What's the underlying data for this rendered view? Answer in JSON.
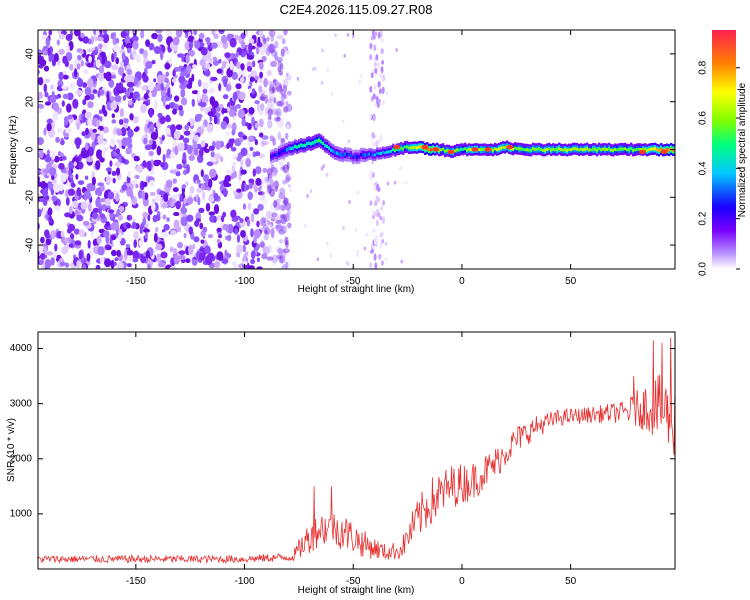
{
  "title": "C2E4.2026.115.09.27.R08",
  "chart_data": [
    {
      "type": "heatmap",
      "name": "spectrogram",
      "xlabel": "Height of straight line (km)",
      "ylabel": "Frequency (Hz)",
      "xlim": [
        -195,
        98
      ],
      "ylim": [
        -50,
        50
      ],
      "xticks": [
        -150,
        -100,
        -50,
        0,
        50
      ],
      "yticks": [
        -40,
        -20,
        0,
        20,
        40
      ],
      "colorbar": {
        "label": "Normalized spectral amplitude",
        "range": [
          0.0,
          0.95
        ],
        "ticks": [
          0.0,
          0.2,
          0.4,
          0.6,
          0.8
        ],
        "colors": [
          "#ffffff",
          "#b48cff",
          "#7a00ff",
          "#1a00ff",
          "#00c8ff",
          "#00ff80",
          "#80ff00",
          "#ffff00",
          "#ff8000",
          "#ff2030"
        ]
      },
      "noise_region_x": [
        -195,
        -83
      ],
      "noise_band_x": [
        -42,
        -36
      ],
      "signal": [
        {
          "x": -88,
          "f": -3,
          "a": 0.25
        },
        {
          "x": -83,
          "f": -1,
          "a": 0.35
        },
        {
          "x": -78,
          "f": 1,
          "a": 0.45
        },
        {
          "x": -72,
          "f": 2,
          "a": 0.5
        },
        {
          "x": -66,
          "f": 4,
          "a": 0.55
        },
        {
          "x": -60,
          "f": -1,
          "a": 0.4
        },
        {
          "x": -55,
          "f": -2,
          "a": 0.35
        },
        {
          "x": -50,
          "f": -3,
          "a": 0.3
        },
        {
          "x": -45,
          "f": -2,
          "a": 0.35
        },
        {
          "x": -40,
          "f": -2,
          "a": 0.4
        },
        {
          "x": -35,
          "f": -1,
          "a": 0.45
        },
        {
          "x": -30,
          "f": 0,
          "a": 0.55
        },
        {
          "x": -25,
          "f": 1,
          "a": 0.6
        },
        {
          "x": -20,
          "f": 1,
          "a": 0.75
        },
        {
          "x": -15,
          "f": 0,
          "a": 0.9
        },
        {
          "x": -10,
          "f": 0,
          "a": 0.6
        },
        {
          "x": -5,
          "f": -1,
          "a": 0.65
        },
        {
          "x": 0,
          "f": 0,
          "a": 0.55
        },
        {
          "x": 5,
          "f": 0,
          "a": 0.7
        },
        {
          "x": 10,
          "f": 0,
          "a": 0.6
        },
        {
          "x": 15,
          "f": 0,
          "a": 0.65
        },
        {
          "x": 20,
          "f": 1,
          "a": 0.7
        },
        {
          "x": 25,
          "f": 0,
          "a": 0.6
        },
        {
          "x": 30,
          "f": 0,
          "a": 0.62
        },
        {
          "x": 40,
          "f": 0,
          "a": 0.65
        },
        {
          "x": 50,
          "f": 0,
          "a": 0.65
        },
        {
          "x": 60,
          "f": 0,
          "a": 0.63
        },
        {
          "x": 70,
          "f": 0,
          "a": 0.62
        },
        {
          "x": 80,
          "f": 0,
          "a": 0.6
        },
        {
          "x": 88,
          "f": 0,
          "a": 0.75
        },
        {
          "x": 95,
          "f": 0,
          "a": 0.85
        }
      ],
      "hot_spots": [
        {
          "x": -30,
          "f": 1
        },
        {
          "x": -17,
          "f": 1
        },
        {
          "x": -12,
          "f": 0
        },
        {
          "x": -5,
          "f": -1
        },
        {
          "x": 6,
          "f": 0
        },
        {
          "x": 12,
          "f": 0
        },
        {
          "x": 22,
          "f": 1
        },
        {
          "x": 83,
          "f": -1
        },
        {
          "x": 93,
          "f": -1
        }
      ]
    },
    {
      "type": "line",
      "name": "snr",
      "xlabel": "Height of straight line (km)",
      "ylabel": "SNR (10 * v/v)",
      "xlim": [
        -195,
        98
      ],
      "ylim": [
        0,
        4300
      ],
      "xticks": [
        -150,
        -100,
        -50,
        0,
        50
      ],
      "yticks": [
        1000,
        2000,
        3000,
        4000
      ],
      "color": "#e83030",
      "envelope": [
        {
          "x": -195,
          "base": 180,
          "spread": 140
        },
        {
          "x": -100,
          "base": 180,
          "spread": 140
        },
        {
          "x": -78,
          "base": 220,
          "spread": 160
        },
        {
          "x": -72,
          "base": 500,
          "spread": 550
        },
        {
          "x": -65,
          "base": 750,
          "spread": 650
        },
        {
          "x": -55,
          "base": 700,
          "spread": 700
        },
        {
          "x": -45,
          "base": 450,
          "spread": 500
        },
        {
          "x": -35,
          "base": 300,
          "spread": 300
        },
        {
          "x": -28,
          "base": 350,
          "spread": 350
        },
        {
          "x": -22,
          "base": 800,
          "spread": 700
        },
        {
          "x": -15,
          "base": 1200,
          "spread": 900
        },
        {
          "x": -5,
          "base": 1500,
          "spread": 800
        },
        {
          "x": 5,
          "base": 1600,
          "spread": 700
        },
        {
          "x": 15,
          "base": 1900,
          "spread": 600
        },
        {
          "x": 25,
          "base": 2350,
          "spread": 500
        },
        {
          "x": 35,
          "base": 2600,
          "spread": 400
        },
        {
          "x": 45,
          "base": 2750,
          "spread": 300
        },
        {
          "x": 60,
          "base": 2800,
          "spread": 300
        },
        {
          "x": 75,
          "base": 2850,
          "spread": 400
        },
        {
          "x": 85,
          "base": 2950,
          "spread": 900
        },
        {
          "x": 92,
          "base": 2900,
          "spread": 1300
        },
        {
          "x": 98,
          "base": 2700,
          "spread": 1400
        }
      ],
      "peaks": [
        {
          "x": -68,
          "y": 1500
        },
        {
          "x": -60,
          "y": 1500
        },
        {
          "x": 79,
          "y": 3500
        },
        {
          "x": 88,
          "y": 4150
        },
        {
          "x": 92,
          "y": 4100
        },
        {
          "x": 96,
          "y": 4200
        }
      ]
    }
  ]
}
